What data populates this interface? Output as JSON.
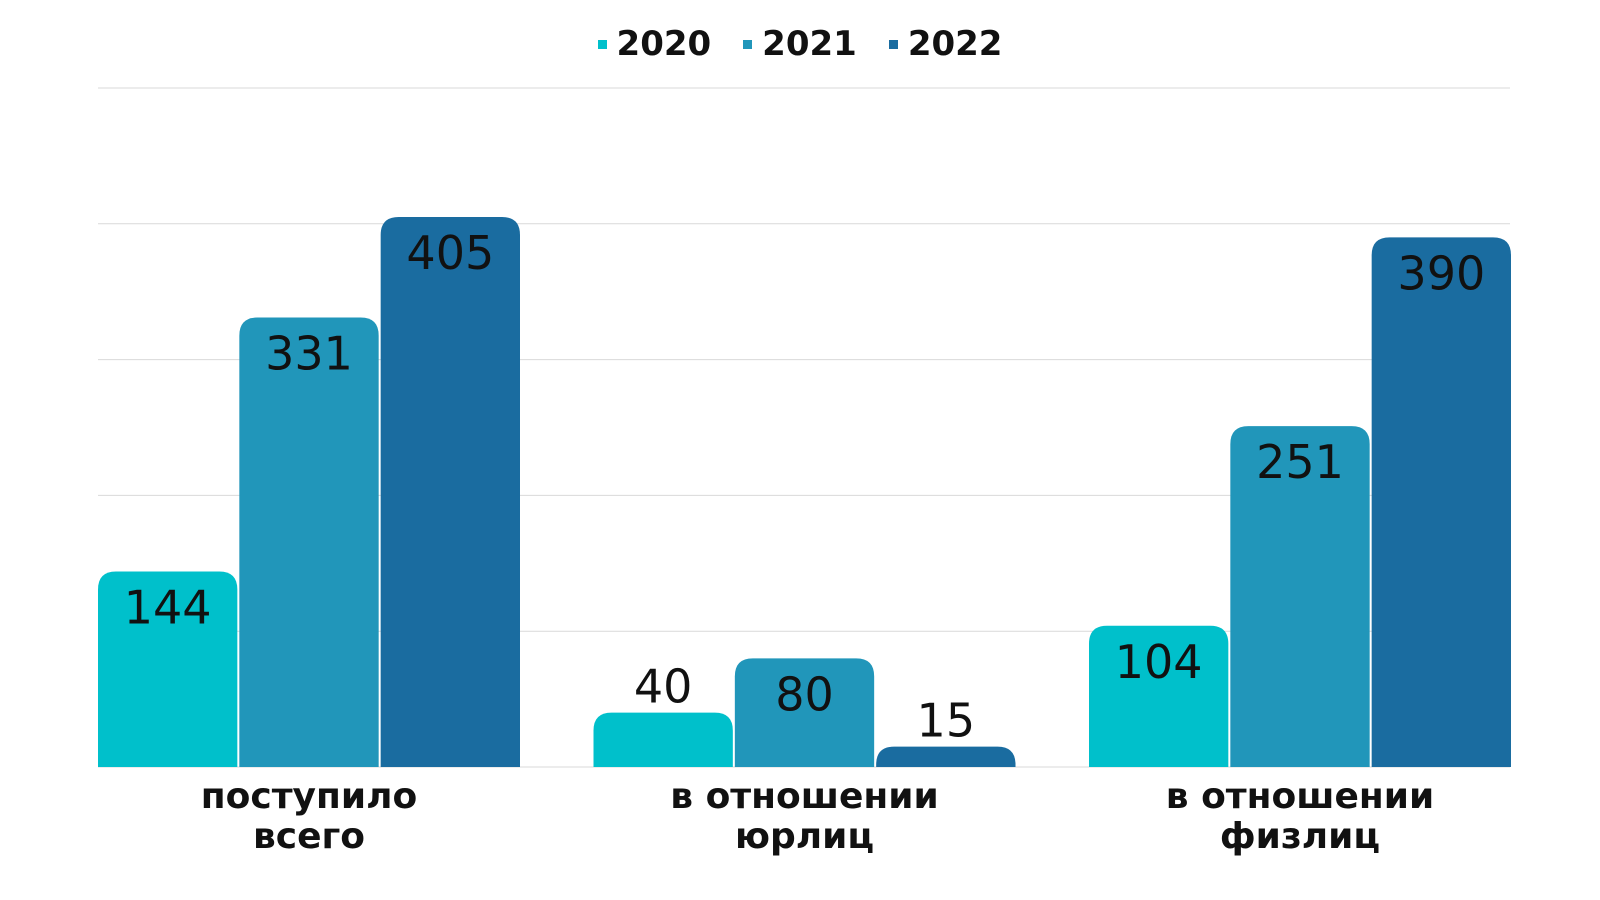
{
  "chart_data": {
    "type": "bar",
    "categories": [
      [
        "поступило",
        "всего"
      ],
      [
        "в отношении",
        "юрлиц"
      ],
      [
        "в отношении",
        "физлиц"
      ]
    ],
    "series": [
      {
        "name": "2020",
        "values": [
          144,
          40,
          104
        ],
        "color": "#00C0CB"
      },
      {
        "name": "2021",
        "values": [
          331,
          80,
          251
        ],
        "color": "#2196BA"
      },
      {
        "name": "2022",
        "values": [
          405,
          15,
          390
        ],
        "color": "#1A6CA0"
      }
    ],
    "ylim": [
      0,
      500
    ],
    "grid": true,
    "legend": "top-center",
    "title": "",
    "xlabel": "",
    "ylabel": ""
  }
}
